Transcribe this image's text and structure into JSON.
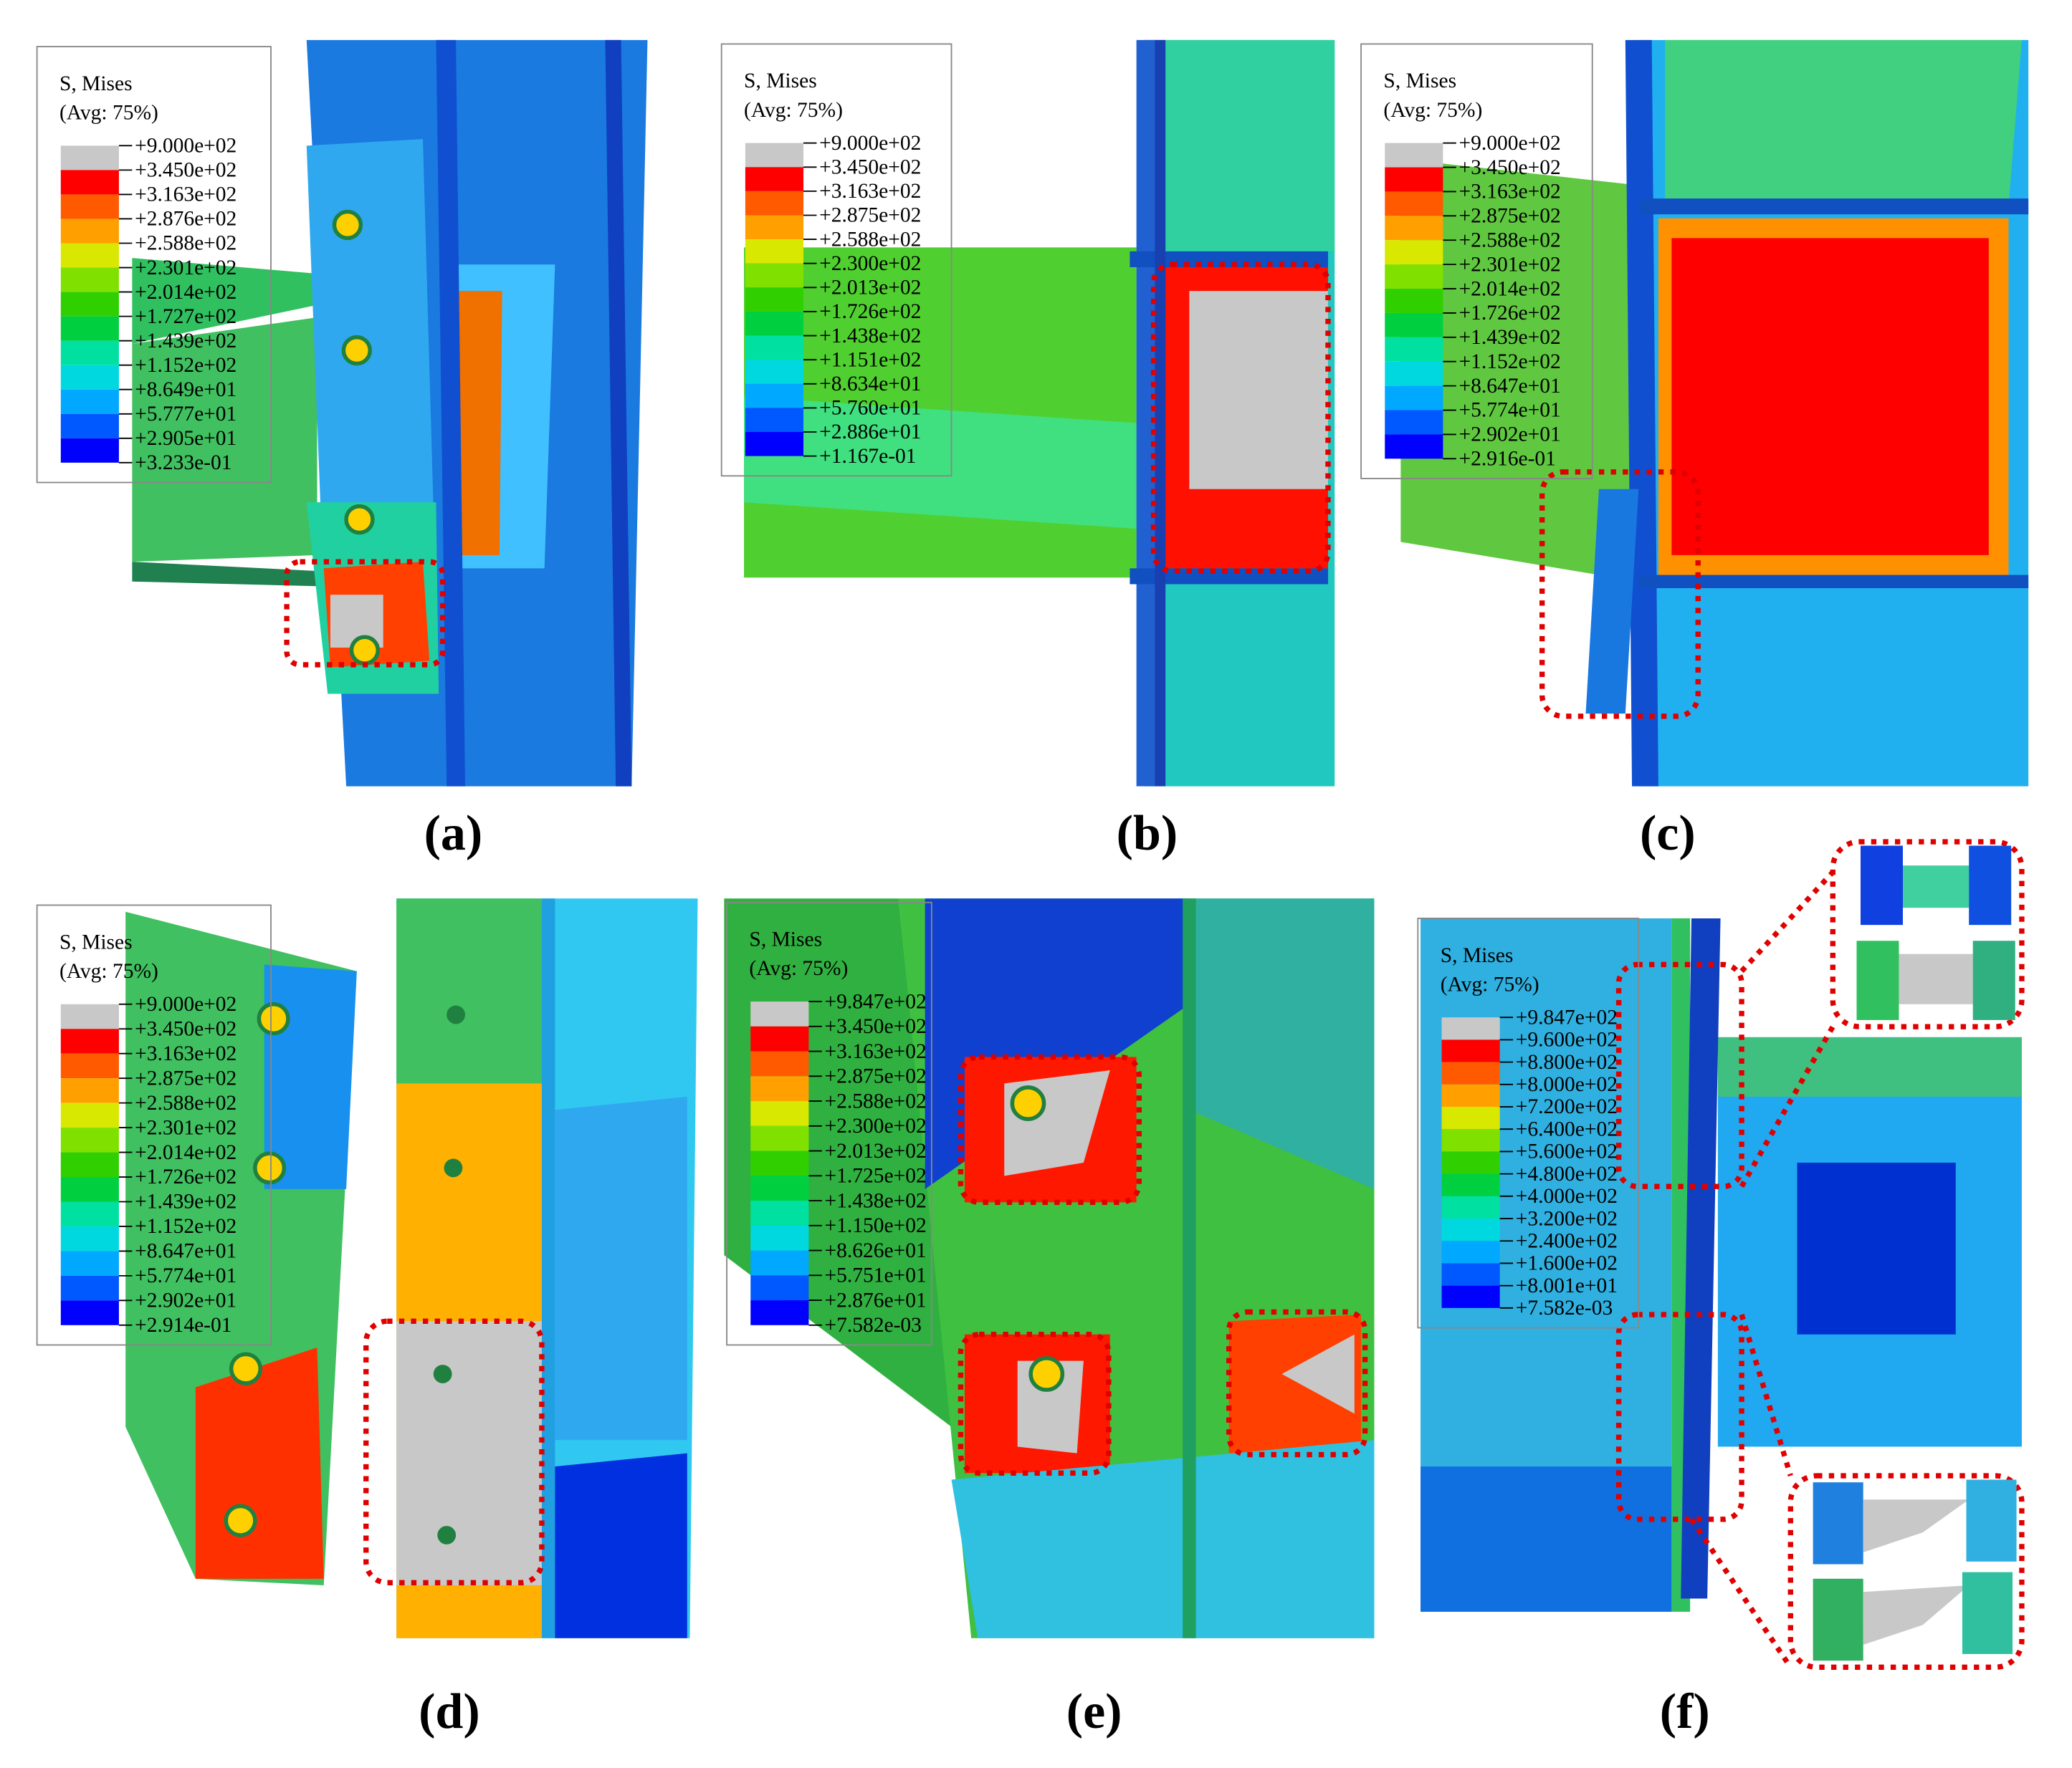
{
  "legend_colors": [
    "#c8c8c8",
    "#ff0000",
    "#ff5a00",
    "#ffa000",
    "#d8e800",
    "#80e000",
    "#30d000",
    "#00d040",
    "#00e0a0",
    "#00d8e0",
    "#00a8ff",
    "#0058ff",
    "#0000ff"
  ],
  "panels": [
    {
      "label": "(a)",
      "legend": {
        "title": "S, Mises",
        "subtitle": "(Avg: 75%)",
        "ticks": [
          "+9.000e+02",
          "+3.450e+02",
          "+3.163e+02",
          "+2.876e+02",
          "+2.588e+02",
          "+2.301e+02",
          "+2.014e+02",
          "+1.727e+02",
          "+1.439e+02",
          "+1.152e+02",
          "+8.649e+01",
          "+5.777e+01",
          "+2.905e+01",
          "+3.233e-01"
        ]
      }
    },
    {
      "label": "(b)",
      "legend": {
        "title": "S, Mises",
        "subtitle": "(Avg: 75%)",
        "ticks": [
          "+9.000e+02",
          "+3.450e+02",
          "+3.163e+02",
          "+2.875e+02",
          "+2.588e+02",
          "+2.300e+02",
          "+2.013e+02",
          "+1.726e+02",
          "+1.438e+02",
          "+1.151e+02",
          "+8.634e+01",
          "+5.760e+01",
          "+2.886e+01",
          "+1.167e-01"
        ]
      }
    },
    {
      "label": "(c)",
      "legend": {
        "title": "S, Mises",
        "subtitle": "(Avg: 75%)",
        "ticks": [
          "+9.000e+02",
          "+3.450e+02",
          "+3.163e+02",
          "+2.875e+02",
          "+2.588e+02",
          "+2.301e+02",
          "+2.014e+02",
          "+1.726e+02",
          "+1.439e+02",
          "+1.152e+02",
          "+8.647e+01",
          "+5.774e+01",
          "+2.902e+01",
          "+2.916e-01"
        ]
      }
    },
    {
      "label": "(d)",
      "legend": {
        "title": "S, Mises",
        "subtitle": "(Avg: 75%)",
        "ticks": [
          "+9.000e+02",
          "+3.450e+02",
          "+3.163e+02",
          "+2.875e+02",
          "+2.588e+02",
          "+2.301e+02",
          "+2.014e+02",
          "+1.726e+02",
          "+1.439e+02",
          "+1.152e+02",
          "+8.647e+01",
          "+5.774e+01",
          "+2.902e+01",
          "+2.914e-01"
        ]
      }
    },
    {
      "label": "(e)",
      "legend": {
        "title": "S, Mises",
        "subtitle": "(Avg: 75%)",
        "ticks": [
          "+9.847e+02",
          "+3.450e+02",
          "+3.163e+02",
          "+2.875e+02",
          "+2.588e+02",
          "+2.300e+02",
          "+2.013e+02",
          "+1.725e+02",
          "+1.438e+02",
          "+1.150e+02",
          "+8.626e+01",
          "+5.751e+01",
          "+2.876e+01",
          "+7.582e-03"
        ]
      }
    },
    {
      "label": "(f)",
      "legend": {
        "title": "S, Mises",
        "subtitle": "(Avg: 75%)",
        "ticks": [
          "+9.847e+02",
          "+9.600e+02",
          "+8.800e+02",
          "+8.000e+02",
          "+7.200e+02",
          "+6.400e+02",
          "+5.600e+02",
          "+4.800e+02",
          "+4.000e+02",
          "+3.200e+02",
          "+2.400e+02",
          "+1.600e+02",
          "+8.001e+01",
          "+7.582e-03"
        ]
      }
    }
  ]
}
